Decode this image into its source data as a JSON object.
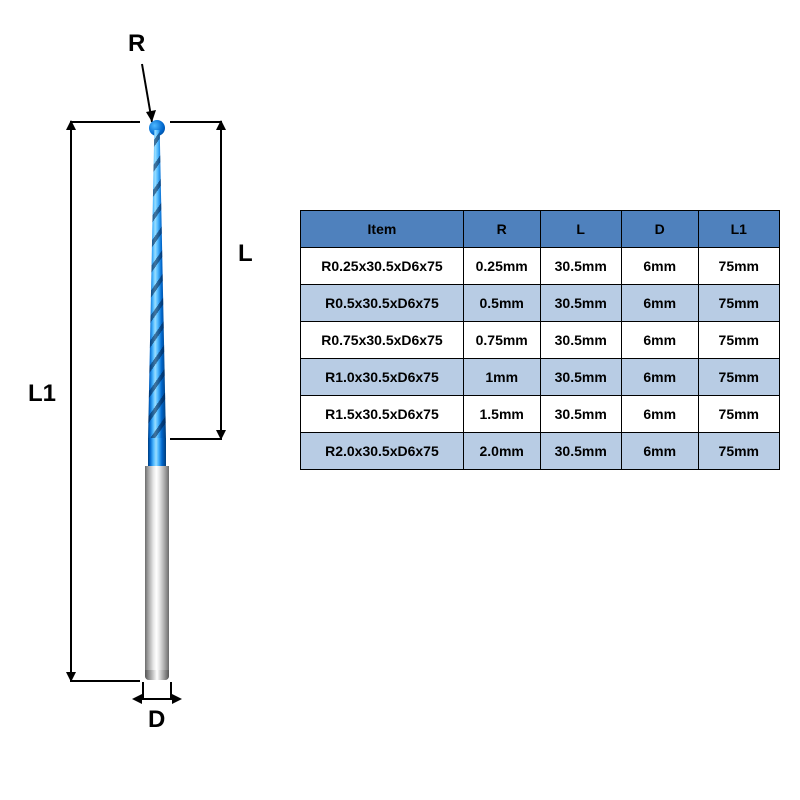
{
  "labels": {
    "R": "R",
    "L": "L",
    "D": "D",
    "L1": "L1"
  },
  "colors": {
    "header_bg": "#4f81bd",
    "row_alt_bg": "#b8cce4",
    "row_bg": "#ffffff",
    "border": "#000000",
    "text": "#000000",
    "flute_blue_light": "#4db8ff",
    "flute_blue_dark": "#0066cc",
    "shank_gray_light": "#e8e8e8",
    "shank_gray_dark": "#6b6b6b"
  },
  "table": {
    "headers": [
      "Item",
      "R",
      "L",
      "D",
      "L1"
    ],
    "rows": [
      [
        "R0.25x30.5xD6x75",
        "0.25mm",
        "30.5mm",
        "6mm",
        "75mm"
      ],
      [
        "R0.5x30.5xD6x75",
        "0.5mm",
        "30.5mm",
        "6mm",
        "75mm"
      ],
      [
        "R0.75x30.5xD6x75",
        "0.75mm",
        "30.5mm",
        "6mm",
        "75mm"
      ],
      [
        "R1.0x30.5xD6x75",
        "1mm",
        "30.5mm",
        "6mm",
        "75mm"
      ],
      [
        "R1.5x30.5xD6x75",
        "1.5mm",
        "30.5mm",
        "6mm",
        "75mm"
      ],
      [
        "R2.0x30.5xD6x75",
        "2.0mm",
        "30.5mm",
        "6mm",
        "75mm"
      ]
    ],
    "header_fontsize": 14,
    "cell_fontsize": 14,
    "font_weight": "bold"
  },
  "diagram": {
    "type": "technical-drawing",
    "subject": "tapered-ball-end-mill",
    "dimensions_shown": [
      "R",
      "L",
      "D",
      "L1"
    ],
    "flute_color": "blue-coated",
    "shank_color": "steel-gray"
  }
}
